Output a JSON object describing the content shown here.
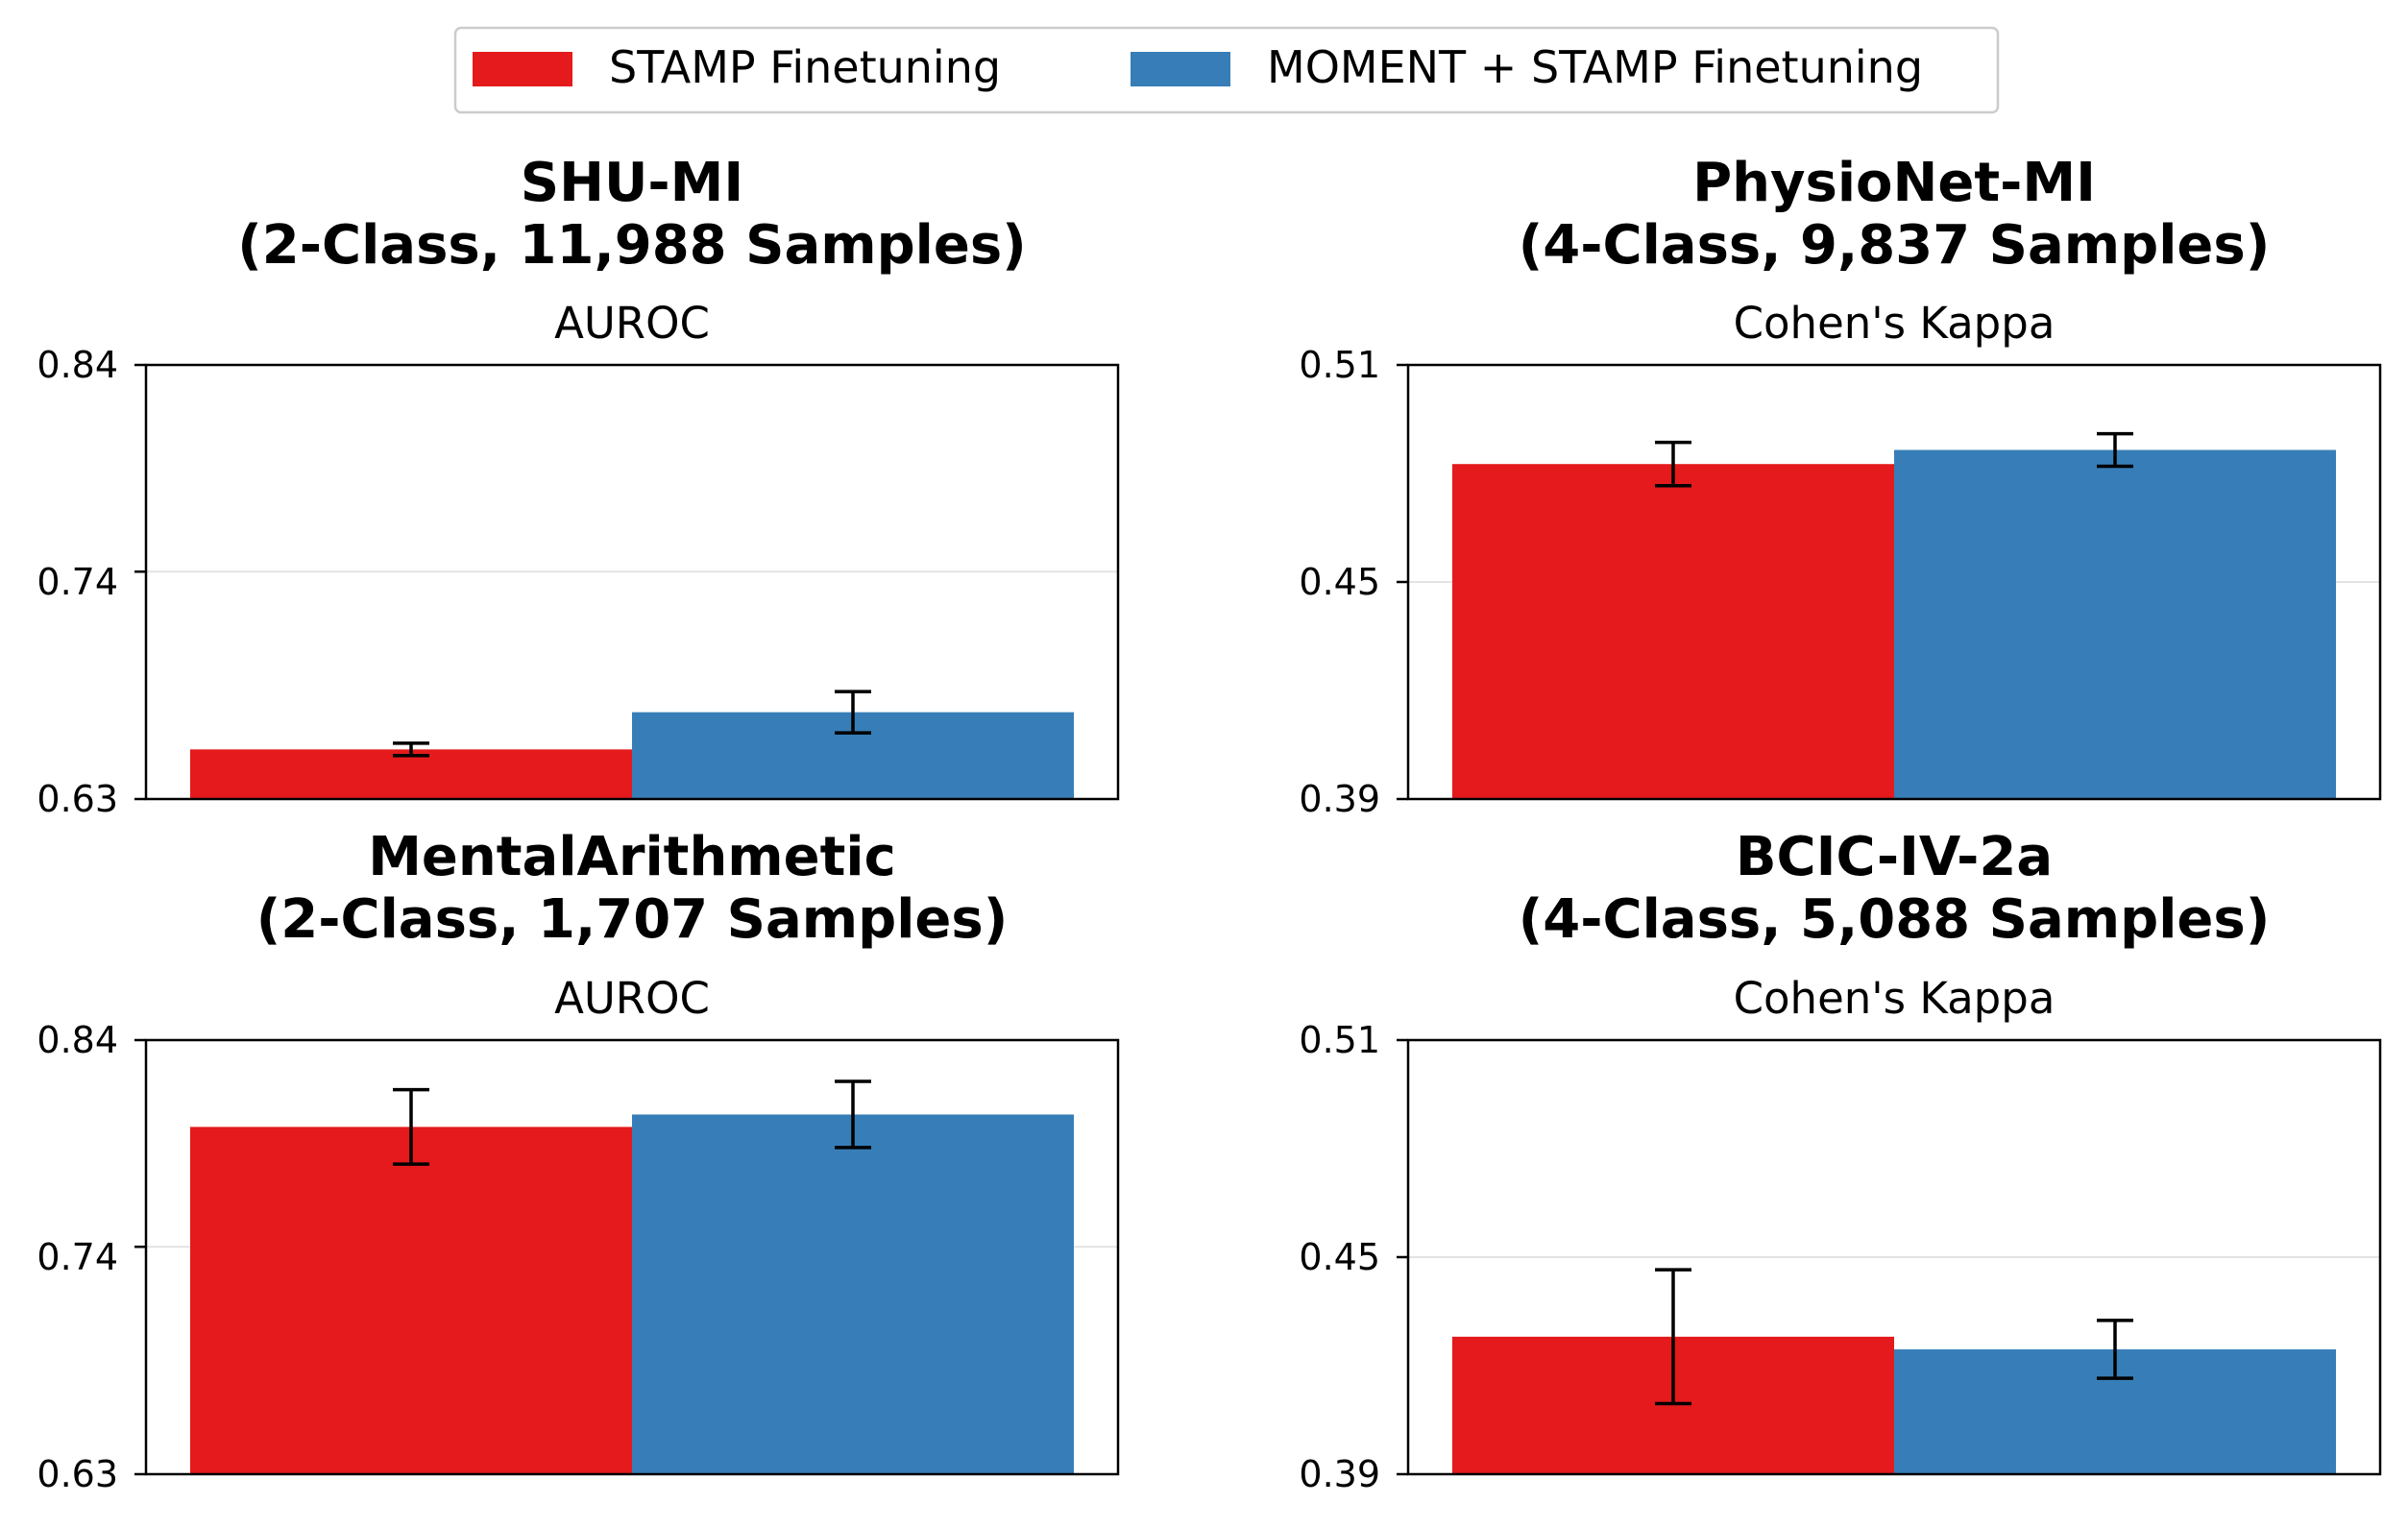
{
  "legend": {
    "items": [
      {
        "label": "STAMP Finetuning",
        "color": "#e41a1c"
      },
      {
        "label": "MOMENT + STAMP Finetuning",
        "color": "#377eb8"
      }
    ],
    "placement": "top-center"
  },
  "chart_data": [
    {
      "type": "bar",
      "title_line1": "SHU-MI",
      "title_line2": "(2-Class, 11,988 Samples)",
      "metric": "AUROC",
      "ylim": [
        0.63,
        0.84
      ],
      "yticks": [
        "0.84",
        "0.74",
        "0.63"
      ],
      "grid": true,
      "series": [
        {
          "name": "STAMP Finetuning",
          "value": 0.654,
          "error": 0.003,
          "color": "#e41a1c"
        },
        {
          "name": "MOMENT + STAMP Finetuning",
          "value": 0.672,
          "error": 0.01,
          "color": "#377eb8"
        }
      ]
    },
    {
      "type": "bar",
      "title_line1": "PhysioNet-MI",
      "title_line2": "(4-Class, 9,837 Samples)",
      "metric": "Cohen's Kappa",
      "ylim": [
        0.39,
        0.51
      ],
      "yticks": [
        "0.51",
        "0.45",
        "0.39"
      ],
      "grid": true,
      "series": [
        {
          "name": "STAMP Finetuning",
          "value": 0.4826,
          "error": 0.006,
          "color": "#e41a1c"
        },
        {
          "name": "MOMENT + STAMP Finetuning",
          "value": 0.4865,
          "error": 0.0045,
          "color": "#377eb8"
        }
      ]
    },
    {
      "type": "bar",
      "title_line1": "MentalArithmetic",
      "title_line2": "(2-Class, 1,707 Samples)",
      "metric": "AUROC",
      "ylim": [
        0.63,
        0.84
      ],
      "yticks": [
        "0.84",
        "0.74",
        "0.63"
      ],
      "grid": true,
      "series": [
        {
          "name": "STAMP Finetuning",
          "value": 0.798,
          "error": 0.018,
          "color": "#e41a1c"
        },
        {
          "name": "MOMENT + STAMP Finetuning",
          "value": 0.804,
          "error": 0.016,
          "color": "#377eb8"
        }
      ]
    },
    {
      "type": "bar",
      "title_line1": "BCIC-IV-2a",
      "title_line2": "(4-Class, 5,088 Samples)",
      "metric": "Cohen's Kappa",
      "ylim": [
        0.39,
        0.51
      ],
      "yticks": [
        "0.51",
        "0.45",
        "0.39"
      ],
      "grid": true,
      "series": [
        {
          "name": "STAMP Finetuning",
          "value": 0.428,
          "error": 0.0185,
          "color": "#e41a1c"
        },
        {
          "name": "MOMENT + STAMP Finetuning",
          "value": 0.4245,
          "error": 0.008,
          "color": "#377eb8"
        }
      ]
    }
  ]
}
